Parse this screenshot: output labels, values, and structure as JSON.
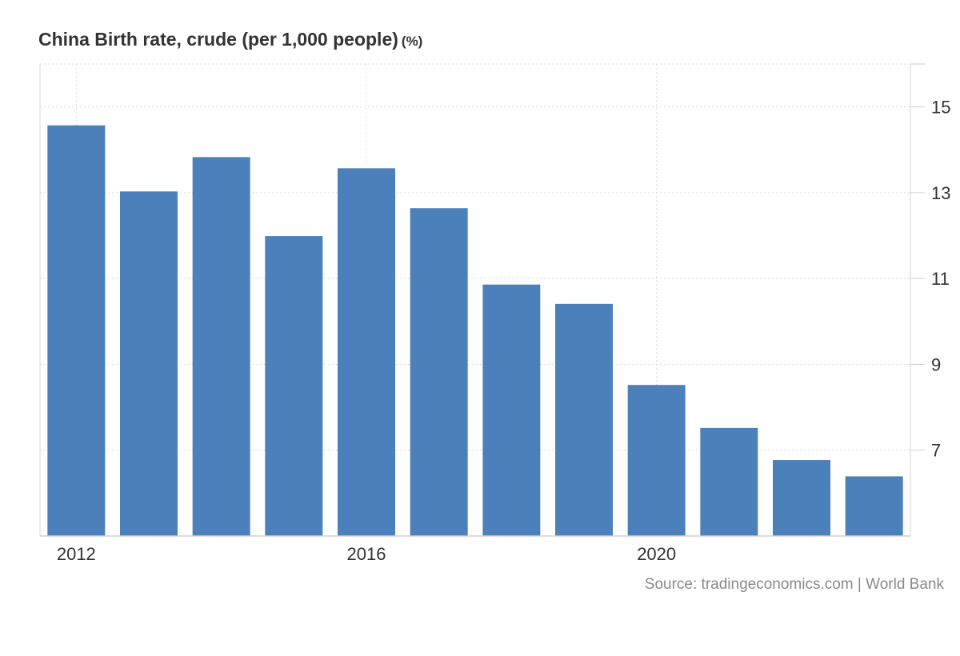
{
  "chart_data": {
    "type": "bar",
    "title": "China Birth rate, crude (per 1,000 people)",
    "unit": "(%)",
    "xlabel": "",
    "ylabel": "",
    "categories": [
      "2012",
      "2013",
      "2014",
      "2015",
      "2016",
      "2017",
      "2018",
      "2019",
      "2020",
      "2021",
      "2022",
      "2023"
    ],
    "x_tick_labels": [
      "2012",
      "2016",
      "2020"
    ],
    "values": [
      14.57,
      13.03,
      13.83,
      11.99,
      13.57,
      12.64,
      10.86,
      10.41,
      8.52,
      7.52,
      6.77,
      6.39
    ],
    "yticks": [
      7,
      9,
      11,
      13,
      15
    ],
    "ylim": [
      5.0,
      16.0
    ],
    "y_axis_position": "right",
    "grid": true,
    "bar_color": "#4c80bb"
  },
  "source": "Source: tradingeconomics.com | World Bank"
}
